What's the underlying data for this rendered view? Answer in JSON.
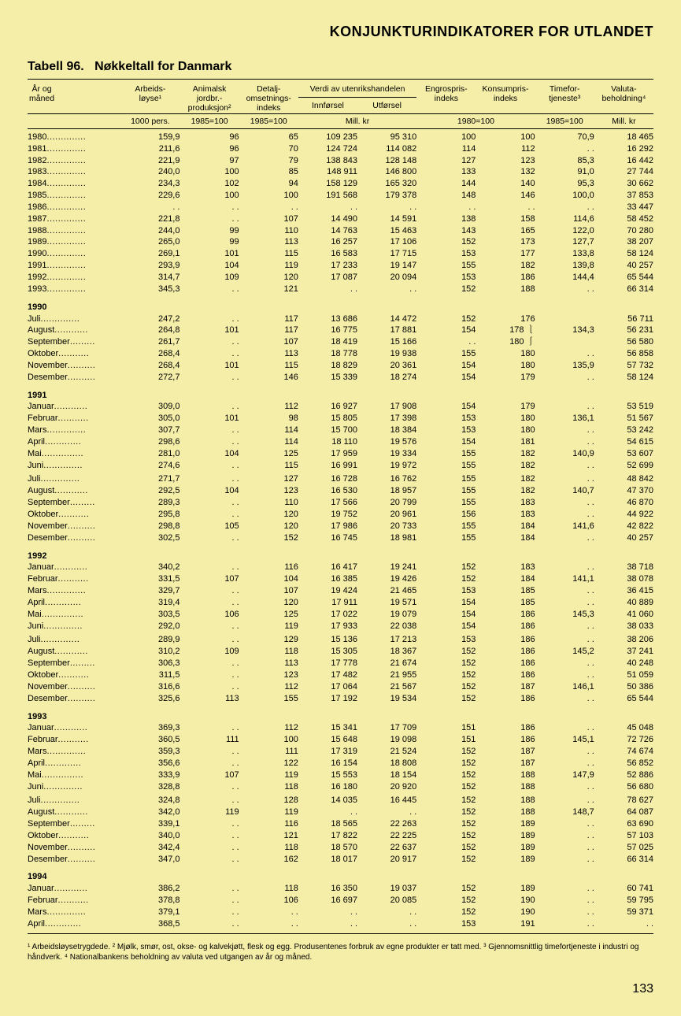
{
  "page": {
    "header": "KONJUNKTURINDIKATORER FOR UTLANDET",
    "title_prefix": "Tabell 96.",
    "title_body": "Nøkkeltall for Danmark",
    "page_number": "133"
  },
  "colors": {
    "background": "#f5eea8",
    "text": "#000000",
    "rule": "#000000"
  },
  "typography": {
    "header_fontsize": 18,
    "title_fontsize": 16,
    "body_fontsize": 11,
    "footnote_fontsize": 10
  },
  "columns": {
    "c0": "År og\nmåned",
    "c1": "Arbeids-\nløyse¹",
    "c2": "Animalsk\njordbr.-\nproduksjon²",
    "c3": "Detalj-\nomsetnings-\nindeks",
    "c4_group": "Verdi av utenrikshandelen",
    "c4": "Innførsel",
    "c5": "Utførsel",
    "c6": "Engrospris-\nindeks",
    "c7": "Konsumpris-\nindeks",
    "c8": "Timefor-\ntjeneste³",
    "c9": "Valuta-\nbeholdning⁴"
  },
  "units": {
    "u1": "1000 pers.",
    "u2": "1985=100",
    "u3": "1985=100",
    "u4_5": "Mill. kr",
    "u6_7": "1980=100",
    "u8": "1985=100",
    "u9": "Mill. kr"
  },
  "rows": [
    {
      "label": "1980",
      "d": [
        "159,9",
        "96",
        "65",
        "109 235",
        "95 310",
        "100",
        "100",
        "70,9",
        "18 465"
      ]
    },
    {
      "label": "1981",
      "d": [
        "211,6",
        "96",
        "70",
        "124 724",
        "114 082",
        "114",
        "112",
        ". .",
        "16 292"
      ]
    },
    {
      "label": "1982",
      "d": [
        "221,9",
        "97",
        "79",
        "138 843",
        "128 148",
        "127",
        "123",
        "85,3",
        "16 442"
      ]
    },
    {
      "label": "1983",
      "d": [
        "240,0",
        "100",
        "85",
        "148 911",
        "146 800",
        "133",
        "132",
        "91,0",
        "27 744"
      ]
    },
    {
      "label": "1984",
      "d": [
        "234,3",
        "102",
        "94",
        "158 129",
        "165 320",
        "144",
        "140",
        "95,3",
        "30 662"
      ]
    },
    {
      "label": "1985",
      "d": [
        "229,6",
        "100",
        "100",
        "191 568",
        "179 378",
        "148",
        "146",
        "100,0",
        "37 853"
      ]
    },
    {
      "label": "1986",
      "d": [
        ". .",
        ". .",
        ". .",
        ". .",
        ". .",
        ". .",
        ". .",
        ". .",
        "33 447"
      ]
    },
    {
      "label": "1987",
      "d": [
        "221,8",
        ". .",
        "107",
        "14 490",
        "14 591",
        "138",
        "158",
        "114,6",
        "58 452"
      ]
    },
    {
      "label": "1988",
      "d": [
        "244,0",
        "99",
        "110",
        "14 763",
        "15 463",
        "143",
        "165",
        "122,0",
        "70 280"
      ]
    },
    {
      "label": "1989",
      "d": [
        "265,0",
        "99",
        "113",
        "16 257",
        "17 106",
        "152",
        "173",
        "127,7",
        "38 207"
      ]
    },
    {
      "label": "1990",
      "d": [
        "269,1",
        "101",
        "115",
        "16 583",
        "17 715",
        "153",
        "177",
        "133,8",
        "58 124"
      ]
    },
    {
      "label": "1991",
      "d": [
        "293,9",
        "104",
        "119",
        "17 233",
        "19 147",
        "155",
        "182",
        "139,8",
        "40 257"
      ]
    },
    {
      "label": "1992",
      "d": [
        "314,7",
        "109",
        "120",
        "17 087",
        "20 094",
        "153",
        "186",
        "144,4",
        "65 544"
      ]
    },
    {
      "label": "1993",
      "d": [
        "345,3",
        ". .",
        "121",
        ". .",
        ". .",
        "152",
        "188",
        ". .",
        "66 314"
      ]
    }
  ],
  "g1990": {
    "year": "1990",
    "rows": [
      {
        "label": "Juli",
        "d": [
          "247,2",
          ". .",
          "117",
          "13 686",
          "14 472",
          "152",
          "176   ",
          "",
          "56 711"
        ]
      },
      {
        "label": "August",
        "d": [
          "264,8",
          "101",
          "117",
          "16 775",
          "17 881",
          "154",
          "178  ⎱",
          "134,3",
          "56 231"
        ]
      },
      {
        "label": "September",
        "d": [
          "261,7",
          ". .",
          "107",
          "18 419",
          "15 166",
          ". .",
          "180  ⎰",
          "",
          "56 580"
        ]
      },
      {
        "label": "Oktober",
        "d": [
          "268,4",
          ". .",
          "113",
          "18 778",
          "19 938",
          "155",
          "180   ",
          ". .",
          "56 858"
        ]
      },
      {
        "label": "November",
        "d": [
          "268,4",
          "101",
          "115",
          "18 829",
          "20 361",
          "154",
          "180   ",
          "135,9",
          "57 732"
        ]
      },
      {
        "label": "Desember",
        "d": [
          "272,7",
          ". .",
          "146",
          "15 339",
          "18 274",
          "154",
          "179   ",
          ". .",
          "58 124"
        ]
      }
    ]
  },
  "g1991a": {
    "year": "1991",
    "rows": [
      {
        "label": "Januar",
        "d": [
          "309,0",
          ". .",
          "112",
          "16 927",
          "17 908",
          "154",
          "179",
          ". .",
          "53 519"
        ]
      },
      {
        "label": "Februar",
        "d": [
          "305,0",
          "101",
          "98",
          "15 805",
          "17 398",
          "153",
          "180",
          "136,1",
          "51 567"
        ]
      },
      {
        "label": "Mars",
        "d": [
          "307,7",
          ". .",
          "114",
          "15 700",
          "18 384",
          "153",
          "180",
          ". .",
          "53 242"
        ]
      },
      {
        "label": "April",
        "d": [
          "298,6",
          ". .",
          "114",
          "18 110",
          "19 576",
          "154",
          "181",
          ". .",
          "54 615"
        ]
      },
      {
        "label": "Mai",
        "d": [
          "281,0",
          "104",
          "125",
          "17 959",
          "19 334",
          "155",
          "182",
          "140,9",
          "53 607"
        ]
      },
      {
        "label": "Juni",
        "d": [
          "274,6",
          ". .",
          "115",
          "16 991",
          "19 972",
          "155",
          "182",
          ". .",
          "52 699"
        ]
      }
    ]
  },
  "g1991b": {
    "rows": [
      {
        "label": "Juli",
        "d": [
          "271,7",
          ". .",
          "127",
          "16 728",
          "16 762",
          "155",
          "182",
          ". .",
          "48 842"
        ]
      },
      {
        "label": "August",
        "d": [
          "292,5",
          "104",
          "123",
          "16 530",
          "18 957",
          "155",
          "182",
          "140,7",
          "47 370"
        ]
      },
      {
        "label": "September",
        "d": [
          "289,3",
          ". .",
          "110",
          "17 566",
          "20 799",
          "155",
          "183",
          ". .",
          "46 870"
        ]
      },
      {
        "label": "Oktober",
        "d": [
          "295,8",
          ". .",
          "120",
          "19 752",
          "20 961",
          "156",
          "183",
          ". .",
          "44 922"
        ]
      },
      {
        "label": "November",
        "d": [
          "298,8",
          "105",
          "120",
          "17 986",
          "20 733",
          "155",
          "184",
          "141,6",
          "42 822"
        ]
      },
      {
        "label": "Desember",
        "d": [
          "302,5",
          ". .",
          "152",
          "16 745",
          "18 981",
          "155",
          "184",
          ". .",
          "40 257"
        ]
      }
    ]
  },
  "g1992a": {
    "year": "1992",
    "rows": [
      {
        "label": "Januar",
        "d": [
          "340,2",
          ". .",
          "116",
          "16 417",
          "19 241",
          "152",
          "183",
          ". .",
          "38 718"
        ]
      },
      {
        "label": "Februar",
        "d": [
          "331,5",
          "107",
          "104",
          "16 385",
          "19 426",
          "152",
          "184",
          "141,1",
          "38 078"
        ]
      },
      {
        "label": "Mars",
        "d": [
          "329,7",
          ". .",
          "107",
          "19 424",
          "21 465",
          "153",
          "185",
          ". .",
          "36 415"
        ]
      },
      {
        "label": "April",
        "d": [
          "319,4",
          ". .",
          "120",
          "17 911",
          "19 571",
          "154",
          "185",
          ". .",
          "40 889"
        ]
      },
      {
        "label": "Mai",
        "d": [
          "303,5",
          "106",
          "125",
          "17 022",
          "19 079",
          "154",
          "186",
          "145,3",
          "41 060"
        ]
      },
      {
        "label": "Juni",
        "d": [
          "292,0",
          ". .",
          "119",
          "17 933",
          "22 038",
          "154",
          "186",
          ". .",
          "38 033"
        ]
      }
    ]
  },
  "g1992b": {
    "rows": [
      {
        "label": "Juli",
        "d": [
          "289,9",
          ". .",
          "129",
          "15 136",
          "17 213",
          "153",
          "186",
          ". .",
          "38 206"
        ]
      },
      {
        "label": "August",
        "d": [
          "310,2",
          "109",
          "118",
          "15 305",
          "18 367",
          "152",
          "186",
          "145,2",
          "37 241"
        ]
      },
      {
        "label": "September",
        "d": [
          "306,3",
          ". .",
          "113",
          "17 778",
          "21 674",
          "152",
          "186",
          ". .",
          "40 248"
        ]
      },
      {
        "label": "Oktober",
        "d": [
          "311,5",
          ". .",
          "123",
          "17 482",
          "21 955",
          "152",
          "186",
          ". .",
          "51 059"
        ]
      },
      {
        "label": "November",
        "d": [
          "316,6",
          ". .",
          "112",
          "17 064",
          "21 567",
          "152",
          "187",
          "146,1",
          "50 386"
        ]
      },
      {
        "label": "Desember",
        "d": [
          "325,6",
          "113",
          "155",
          "17 192",
          "19 534",
          "152",
          "186",
          ". .",
          "65 544"
        ]
      }
    ]
  },
  "g1993a": {
    "year": "1993",
    "rows": [
      {
        "label": "Januar",
        "d": [
          "369,3",
          ". .",
          "112",
          "15 341",
          "17 709",
          "151",
          "186",
          ". .",
          "45 048"
        ]
      },
      {
        "label": "Februar",
        "d": [
          "360,5",
          "111",
          "100",
          "15 648",
          "19 098",
          "151",
          "186",
          "145,1",
          "72 726"
        ]
      },
      {
        "label": "Mars",
        "d": [
          "359,3",
          ". .",
          "111",
          "17 319",
          "21 524",
          "152",
          "187",
          ". .",
          "74 674"
        ]
      },
      {
        "label": "April",
        "d": [
          "356,6",
          ". .",
          "122",
          "16 154",
          "18 808",
          "152",
          "187",
          ". .",
          "56 852"
        ]
      },
      {
        "label": "Mai",
        "d": [
          "333,9",
          "107",
          "119",
          "15 553",
          "18 154",
          "152",
          "188",
          "147,9",
          "52 886"
        ]
      },
      {
        "label": "Juni",
        "d": [
          "328,8",
          ". .",
          "118",
          "16 180",
          "20 920",
          "152",
          "188",
          ". .",
          "56 680"
        ]
      }
    ]
  },
  "g1993b": {
    "rows": [
      {
        "label": "Juli",
        "d": [
          "324,8",
          ". .",
          "128",
          "14 035",
          "16 445",
          "152",
          "188",
          ". .",
          "78 627"
        ]
      },
      {
        "label": "August",
        "d": [
          "342,0",
          "119",
          "119",
          ". .",
          ". .",
          "152",
          "188",
          "148,7",
          "64 087"
        ]
      },
      {
        "label": "September",
        "d": [
          "339,1",
          ". .",
          "116",
          "18 565",
          "22 263",
          "152",
          "189",
          ". .",
          "63 690"
        ]
      },
      {
        "label": "Oktober",
        "d": [
          "340,0",
          ". .",
          "121",
          "17 822",
          "22 225",
          "152",
          "189",
          ". .",
          "57 103"
        ]
      },
      {
        "label": "November",
        "d": [
          "342,4",
          ". .",
          "118",
          "18 570",
          "22 637",
          "152",
          "189",
          ". .",
          "57 025"
        ]
      },
      {
        "label": "Desember",
        "d": [
          "347,0",
          ". .",
          "162",
          "18 017",
          "20 917",
          "152",
          "189",
          ". .",
          "66 314"
        ]
      }
    ]
  },
  "g1994": {
    "year": "1994",
    "rows": [
      {
        "label": "Januar",
        "d": [
          "386,2",
          ". .",
          "118",
          "16 350",
          "19 037",
          "152",
          "189",
          ". .",
          "60 741"
        ]
      },
      {
        "label": "Februar",
        "d": [
          "378,8",
          ". .",
          "106",
          "16 697",
          "20 085",
          "152",
          "190",
          ". .",
          "59 795"
        ]
      },
      {
        "label": "Mars",
        "d": [
          "379,1",
          ". .",
          ". .",
          ". .",
          ". .",
          "152",
          "190",
          ". .",
          "59 371"
        ]
      },
      {
        "label": "April",
        "d": [
          "368,5",
          ". .",
          ". .",
          ". .",
          ". .",
          "153",
          "191",
          ". .",
          ". ."
        ]
      }
    ]
  },
  "footnotes": "¹ Arbeidsløysetrygdede. ² Mjølk, smør, ost, okse- og kalvekjøtt, flesk og egg. Produsentenes forbruk av egne produkter er tatt med. ³ Gjennomsnittlig timefortjeneste i industri og håndverk. ⁴ Nationalbankens beholdning av valuta ved utgangen av år og måned."
}
